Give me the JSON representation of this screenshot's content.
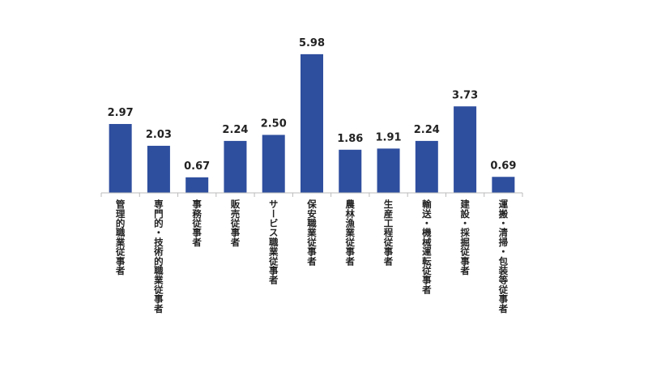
{
  "chart_data": {
    "type": "bar",
    "categories": [
      "管理的職業従事者",
      "専門的・技術的職業従事者",
      "事務従事者",
      "販売従事者",
      "サービス職業従事者",
      "保安職業従事者",
      "農林漁業従事者",
      "生産工程従事者",
      "輸送・機械運転従事者",
      "建設・採掘従事者",
      "運搬・清掃・包装等従事者"
    ],
    "values": [
      2.97,
      2.03,
      0.67,
      2.24,
      2.5,
      5.98,
      1.86,
      1.91,
      2.24,
      3.73,
      0.69
    ],
    "value_labels": [
      "2.97",
      "2.03",
      "0.67",
      "2.24",
      "2.50",
      "5.98",
      "1.86",
      "1.91",
      "2.24",
      "3.73",
      "0.69"
    ],
    "title": "",
    "xlabel": "",
    "ylabel": "",
    "ylim": [
      0,
      6.5
    ],
    "grid": false,
    "legend": "none",
    "bar_color": "#2e4e9e",
    "axis_color": "#bbbbbb"
  }
}
